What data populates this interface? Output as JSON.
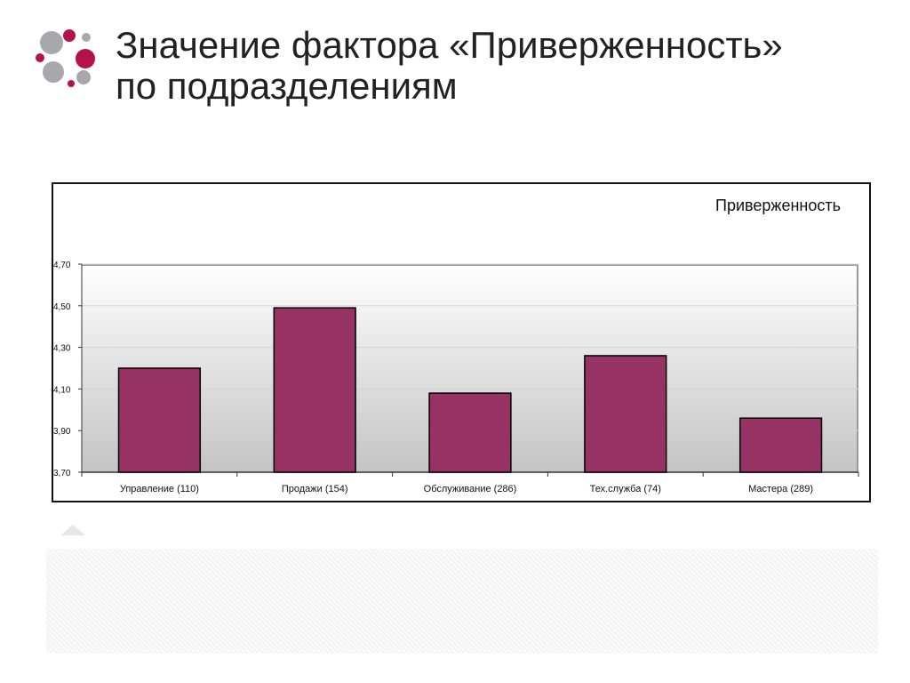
{
  "slide": {
    "title_line1": "Значение фактора «Приверженность»",
    "title_line2": "по подразделениям"
  },
  "colors": {
    "bar": "#963264",
    "logo_red": "#b5124a",
    "logo_gray": "#a8a8ac"
  },
  "chart_data": {
    "type": "bar",
    "title": "Приверженность",
    "xlabel": "",
    "ylabel": "",
    "categories": [
      "Управление (110)",
      "Продажи (154)",
      "Обслуживание (286)",
      "Тех.служба (74)",
      "Мастера (289)"
    ],
    "values": [
      4.2,
      4.49,
      4.08,
      4.26,
      3.96
    ],
    "ylim": [
      3.7,
      4.7
    ],
    "yticks": [
      "3,70",
      "3,90",
      "4,10",
      "4,30",
      "4,50",
      "4,70"
    ],
    "ytick_values": [
      3.7,
      3.9,
      4.1,
      4.3,
      4.5,
      4.7
    ],
    "grid": true,
    "legend": "none"
  }
}
